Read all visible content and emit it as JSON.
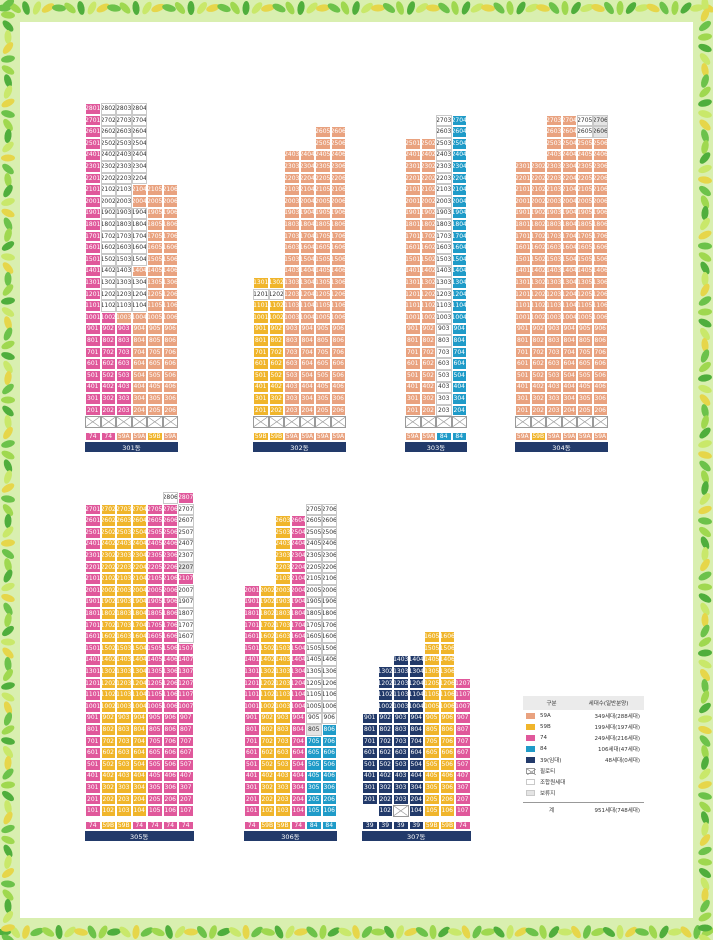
{
  "colors": {
    "59A": "#e9a27f",
    "59B": "#f0b52b",
    "74": "#e0589b",
    "84": "#1f9bc8",
    "39": "#223a6a",
    "border_leaf": "#6cc24a"
  },
  "buildings": [
    {
      "name": "301동",
      "x": 85,
      "cols": 6,
      "floors": [
        [
          28,
          "pwww"
        ],
        [
          27,
          "pwww"
        ],
        [
          26,
          "pwww"
        ],
        [
          25,
          "pwww"
        ],
        [
          24,
          "pwww"
        ],
        [
          23,
          "pwww"
        ],
        [
          22,
          "pwww"
        ],
        [
          21,
          "pwwooo"
        ],
        [
          20,
          "pwwooo"
        ],
        [
          19,
          "pwwwoo"
        ],
        [
          18,
          "pwwwoo"
        ],
        [
          17,
          "pwwwoo"
        ],
        [
          16,
          "pwwwoo"
        ],
        [
          15,
          "pwwwoo"
        ],
        [
          14,
          "pwwooo"
        ],
        [
          13,
          "pwwwoo"
        ],
        [
          12,
          "pwwwoo"
        ],
        [
          11,
          "pwwwoo"
        ],
        [
          10,
          "ppoooo"
        ],
        [
          9,
          "pppooo"
        ],
        [
          8,
          "pppooo"
        ],
        [
          7,
          "pppooo"
        ],
        [
          6,
          "pppooo"
        ],
        [
          5,
          "pppooo"
        ],
        [
          4,
          "pppooo"
        ],
        [
          3,
          "pppooo"
        ],
        [
          2,
          "pppooo"
        ],
        [
          1,
          "xxxxxx"
        ]
      ],
      "types": [
        "74",
        "74",
        "59A",
        "59A",
        "59B",
        "59A"
      ]
    },
    {
      "name": "302동",
      "x": 253,
      "cols": 6,
      "floors": [
        [
          26,
          "____oo"
        ],
        [
          25,
          "____oo"
        ],
        [
          24,
          "__oooo"
        ],
        [
          23,
          "__oooo"
        ],
        [
          22,
          "__oooo"
        ],
        [
          21,
          "__oooo"
        ],
        [
          20,
          "__oooo"
        ],
        [
          19,
          "__oooo"
        ],
        [
          18,
          "__oooo"
        ],
        [
          17,
          "__oooo"
        ],
        [
          16,
          "__oooo"
        ],
        [
          15,
          "__oooo"
        ],
        [
          14,
          "__oooo"
        ],
        [
          13,
          "yyoooo"
        ],
        [
          12,
          "wwoooo"
        ],
        [
          11,
          "yyoooo"
        ],
        [
          10,
          "yyoooo"
        ],
        [
          9,
          "yyoooo"
        ],
        [
          8,
          "yyoooo"
        ],
        [
          7,
          "yyoooo"
        ],
        [
          6,
          "yyoooo"
        ],
        [
          5,
          "yyoooo"
        ],
        [
          4,
          "yyoooo"
        ],
        [
          3,
          "yyoooo"
        ],
        [
          2,
          "yyoooo"
        ],
        [
          1,
          "xxxxxx"
        ]
      ],
      "types": [
        "59B",
        "59B",
        "59A",
        "59A",
        "59A",
        "59A"
      ]
    },
    {
      "name": "303동",
      "x": 405,
      "cols": 4,
      "floors": [
        [
          27,
          "__wb"
        ],
        [
          26,
          "__wb"
        ],
        [
          25,
          "oowb"
        ],
        [
          24,
          "oowb"
        ],
        [
          23,
          "oowb"
        ],
        [
          22,
          "oowb"
        ],
        [
          21,
          "oowb"
        ],
        [
          20,
          "oowb"
        ],
        [
          19,
          "oowb"
        ],
        [
          18,
          "oowb"
        ],
        [
          17,
          "oowb"
        ],
        [
          16,
          "oowb"
        ],
        [
          15,
          "oowb"
        ],
        [
          14,
          "oowb"
        ],
        [
          13,
          "oowb"
        ],
        [
          12,
          "oowb"
        ],
        [
          11,
          "oowb"
        ],
        [
          10,
          "oowb"
        ],
        [
          9,
          "oowb"
        ],
        [
          8,
          "oowb"
        ],
        [
          7,
          "oowb"
        ],
        [
          6,
          "oowb"
        ],
        [
          5,
          "oowb"
        ],
        [
          4,
          "oowb"
        ],
        [
          3,
          "oowb"
        ],
        [
          2,
          "oowb"
        ],
        [
          1,
          "xxxx"
        ]
      ],
      "types": [
        "59A",
        "59A",
        "84",
        "84"
      ]
    },
    {
      "name": "304동",
      "x": 515,
      "cols": 6,
      "floors": [
        [
          27,
          "__oowg"
        ],
        [
          26,
          "__oowg"
        ],
        [
          25,
          "__oooo"
        ],
        [
          24,
          "__oooo"
        ],
        [
          23,
          "oooooo"
        ],
        [
          22,
          "oooooo"
        ],
        [
          21,
          "oooooo"
        ],
        [
          20,
          "oooooo"
        ],
        [
          19,
          "oooooo"
        ],
        [
          18,
          "oooooo"
        ],
        [
          17,
          "oooooo"
        ],
        [
          16,
          "oooooo"
        ],
        [
          15,
          "oooooo"
        ],
        [
          14,
          "oooooo"
        ],
        [
          13,
          "oooooo"
        ],
        [
          12,
          "oooooo"
        ],
        [
          11,
          "oooooo"
        ],
        [
          10,
          "oooooo"
        ],
        [
          9,
          "oooooo"
        ],
        [
          8,
          "oooooo"
        ],
        [
          7,
          "oooooo"
        ],
        [
          6,
          "oooooo"
        ],
        [
          5,
          "oooooo"
        ],
        [
          4,
          "oooooo"
        ],
        [
          3,
          "oooooo"
        ],
        [
          2,
          "oooooo"
        ],
        [
          1,
          "xxxxxx"
        ]
      ],
      "types": [
        "59A",
        "59B",
        "59A",
        "59A",
        "59A",
        "59A"
      ]
    },
    {
      "name": "305동",
      "x": 85,
      "cols": 7,
      "floors": [
        [
          28,
          "_____wp"
        ],
        [
          27,
          "pyyyppw"
        ],
        [
          26,
          "pyyyppw"
        ],
        [
          25,
          "pyyyppw"
        ],
        [
          24,
          "pyyyppw"
        ],
        [
          23,
          "pyyyppw"
        ],
        [
          22,
          "pyyyppg"
        ],
        [
          21,
          "pyyyppp"
        ],
        [
          20,
          "pyyyppw"
        ],
        [
          19,
          "pyyyppw"
        ],
        [
          18,
          "pyyyppw"
        ],
        [
          17,
          "pyyyppw"
        ],
        [
          16,
          "pyyyppw"
        ],
        [
          15,
          "pyyyppp"
        ],
        [
          14,
          "pyyyppp"
        ],
        [
          13,
          "pyyyppp"
        ],
        [
          12,
          "pyyyppp"
        ],
        [
          11,
          "pyyyppp"
        ],
        [
          10,
          "pyyyppp"
        ],
        [
          9,
          "pyyyppp"
        ],
        [
          8,
          "pyyyppp"
        ],
        [
          7,
          "pyyyppp"
        ],
        [
          6,
          "pyyyppp"
        ],
        [
          5,
          "pyyyppp"
        ],
        [
          4,
          "pyyyppp"
        ],
        [
          3,
          "pyyyppp"
        ],
        [
          2,
          "pyyyppp"
        ],
        [
          1,
          "pyyyppp"
        ]
      ],
      "types": [
        "74",
        "59B",
        "59B",
        "74",
        "74",
        "74",
        "74"
      ]
    },
    {
      "name": "306동",
      "x": 244,
      "cols": 6,
      "floors": [
        [
          27,
          "____ww"
        ],
        [
          26,
          "__ypww"
        ],
        [
          25,
          "__ypww"
        ],
        [
          24,
          "__ypww"
        ],
        [
          23,
          "__ypww"
        ],
        [
          22,
          "__ypww"
        ],
        [
          21,
          "__ypww"
        ],
        [
          20,
          "pyypww"
        ],
        [
          19,
          "pyypww"
        ],
        [
          18,
          "pyypww"
        ],
        [
          17,
          "pyypww"
        ],
        [
          16,
          "pyypww"
        ],
        [
          15,
          "pyypww"
        ],
        [
          14,
          "pyypww"
        ],
        [
          13,
          "pyypww"
        ],
        [
          12,
          "pyypww"
        ],
        [
          11,
          "pyypww"
        ],
        [
          10,
          "pyypww"
        ],
        [
          9,
          "pyypww"
        ],
        [
          8,
          "pyypgb"
        ],
        [
          7,
          "pyypbb"
        ],
        [
          6,
          "pyypbb"
        ],
        [
          5,
          "pyypbb"
        ],
        [
          4,
          "pyypbb"
        ],
        [
          3,
          "pyypbb"
        ],
        [
          2,
          "pyypbb"
        ],
        [
          1,
          "pyypbb"
        ]
      ],
      "types": [
        "74",
        "59B",
        "59B",
        "74",
        "84",
        "84"
      ]
    },
    {
      "name": "307동",
      "x": 362,
      "cols": 7,
      "floors": [
        [
          16,
          "____yy_"
        ],
        [
          15,
          "____yy_"
        ],
        [
          14,
          "__nnyy_"
        ],
        [
          13,
          "_nnnyy_"
        ],
        [
          12,
          "_nnnyyp"
        ],
        [
          11,
          "_nnnyyp"
        ],
        [
          10,
          "_nnnyyp"
        ],
        [
          9,
          "nnnnyyp"
        ],
        [
          8,
          "nnnnyyp"
        ],
        [
          7,
          "nnnnyyp"
        ],
        [
          6,
          "nnnnyyp"
        ],
        [
          5,
          "nnnnyyp"
        ],
        [
          4,
          "nnnnyyp"
        ],
        [
          3,
          "nnnnyyp"
        ],
        [
          2,
          "nnnnyyp"
        ],
        [
          1,
          "_nxnyyp"
        ]
      ],
      "types": [
        "39",
        "39",
        "39",
        "39",
        "59B",
        "59B",
        "74"
      ]
    }
  ],
  "legend": {
    "header": [
      "구분",
      "세대수(일반분양)"
    ],
    "rows": [
      {
        "swatch": "59A",
        "label": "59A",
        "value": "349세대(288세대)"
      },
      {
        "swatch": "59B",
        "label": "59B",
        "value": "199세대(197세대)"
      },
      {
        "swatch": "74",
        "label": "74",
        "value": "249세대(216세대)"
      },
      {
        "swatch": "84",
        "label": "84",
        "value": "106세대(47세대)"
      },
      {
        "swatch": "39",
        "label": "39(임대)",
        "value": "48세대(0세대)"
      },
      {
        "swatch": "piloti",
        "label": "필로티",
        "value": ""
      },
      {
        "swatch": "member",
        "label": "조합원세대",
        "value": ""
      },
      {
        "swatch": "reserve",
        "label": "보류지",
        "value": ""
      }
    ],
    "total_label": "계",
    "total_value": "951세대(748세대)"
  }
}
